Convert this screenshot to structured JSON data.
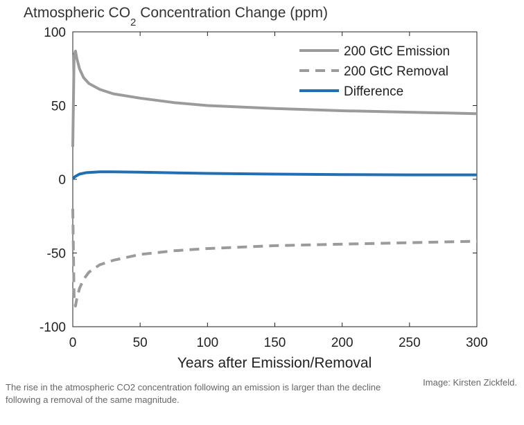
{
  "chart_data": {
    "type": "line",
    "title_parts": [
      "Atmospheric CO",
      "2",
      " Concentration Change (ppm)"
    ],
    "xlabel": "Years after Emission/Removal",
    "ylabel": "",
    "xlim": [
      0,
      300
    ],
    "ylim": [
      -100,
      100
    ],
    "x_ticks": [
      0,
      50,
      100,
      150,
      200,
      250,
      300
    ],
    "y_ticks": [
      -100,
      -50,
      0,
      50,
      100
    ],
    "x_tick_labels": [
      "0",
      "50",
      "100",
      "150",
      "200",
      "250",
      "300"
    ],
    "y_tick_labels": [
      "-100",
      "-50",
      "0",
      "50",
      "100"
    ],
    "grid": false,
    "legend_position": "top-right",
    "series": [
      {
        "name": "200 GtC Emission",
        "color": "#9b9b9b",
        "style": "solid",
        "x": [
          0,
          1,
          2,
          3,
          5,
          8,
          12,
          20,
          30,
          50,
          75,
          100,
          150,
          200,
          250,
          300
        ],
        "y": [
          22,
          84,
          87,
          82,
          75,
          69,
          65,
          61,
          58,
          55,
          52,
          50,
          48,
          46.5,
          45.5,
          44.5
        ]
      },
      {
        "name": "200 GtC Removal",
        "color": "#9b9b9b",
        "style": "dashed",
        "x": [
          0,
          1,
          2,
          3,
          5,
          8,
          12,
          20,
          30,
          50,
          75,
          100,
          150,
          200,
          250,
          300
        ],
        "y": [
          -20,
          -80,
          -86,
          -81,
          -74,
          -68,
          -63,
          -58,
          -55,
          -51,
          -48.5,
          -47,
          -45,
          -44,
          -43,
          -42
        ]
      },
      {
        "name": "Difference",
        "color": "#1f6fb2",
        "style": "solid",
        "x": [
          0,
          2,
          5,
          10,
          20,
          30,
          50,
          100,
          150,
          200,
          250,
          300
        ],
        "y": [
          0.5,
          2,
          3.5,
          4.5,
          5,
          5,
          4.8,
          4,
          3.5,
          3.2,
          3,
          3
        ]
      }
    ]
  },
  "caption": "The rise in the atmospheric CO2 concentration following an emission is larger than the decline following a removal of the same magnitude.",
  "credit": "Image: Kirsten Zickfeld."
}
